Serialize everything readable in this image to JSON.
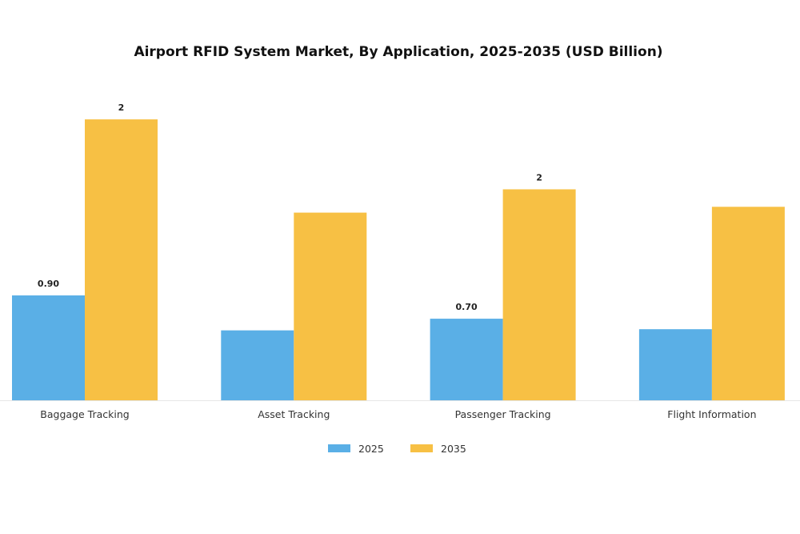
{
  "chart_data": {
    "type": "bar",
    "title": "Airport RFID System Market, By Application, 2025-2035 (USD Billion)",
    "xlabel": "",
    "ylabel": "",
    "categories": [
      "Baggage Tracking",
      "Asset Tracking",
      "Passenger Tracking",
      "Flight Information"
    ],
    "series": [
      {
        "name": "2025",
        "color": "#5aafe6",
        "values": [
          0.9,
          0.6,
          0.7,
          0.61
        ],
        "labels": [
          "0.90",
          "",
          "0.70",
          ""
        ]
      },
      {
        "name": "2035",
        "color": "#f7c044",
        "values": [
          2.41,
          1.61,
          1.81,
          1.66
        ],
        "labels": [
          "2",
          "",
          "2",
          ""
        ]
      }
    ],
    "ylim": [
      0,
      2.5
    ],
    "grid": false,
    "legend_position": "bottom"
  }
}
